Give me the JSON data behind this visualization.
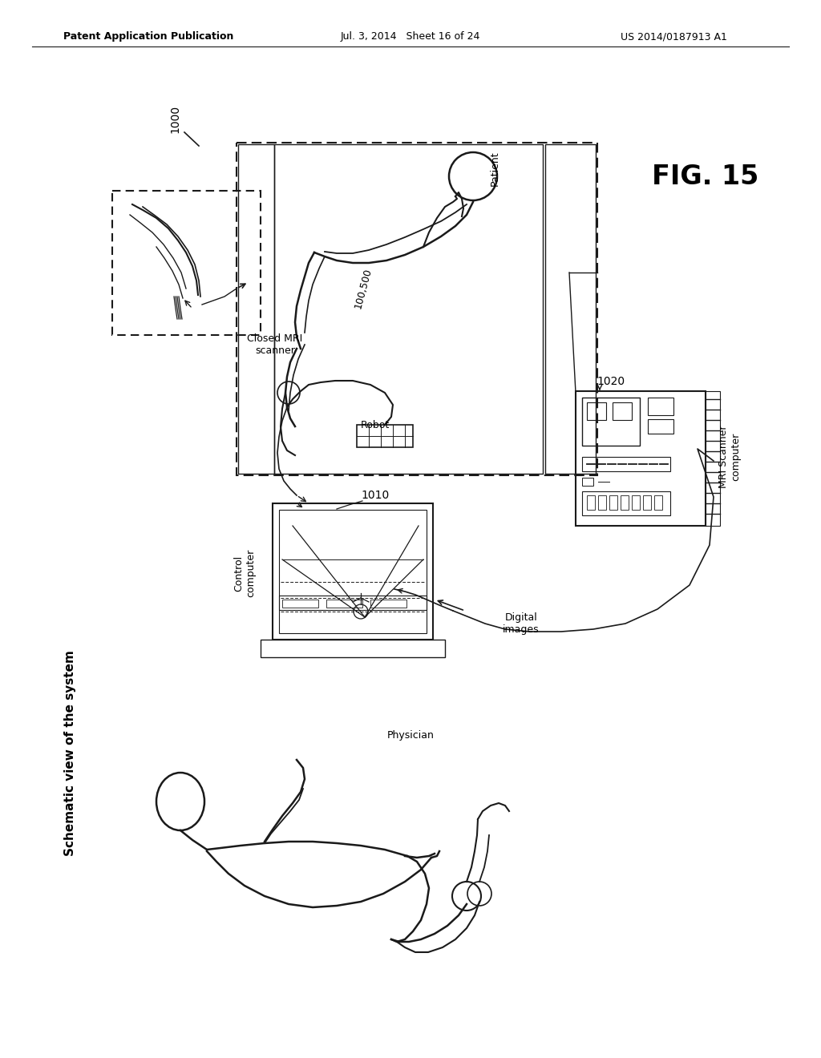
{
  "header_left": "Patent Application Publication",
  "header_center": "Jul. 3, 2014   Sheet 16 of 24",
  "header_right": "US 2014/0187913 A1",
  "fig_label": "FIG. 15",
  "subtitle": "Schematic view of the system",
  "label_1000": "1000",
  "label_1010": "1010",
  "label_1020": "1020",
  "label_patient": "Patient",
  "label_closed_mri": "Closed MRI\nscanner",
  "label_robot": "Robot",
  "label_100_500": "100,500",
  "label_mri_scanner_computer": "MRI Scanner\ncomputer",
  "label_control_computer": "Control\ncomputer",
  "label_physician": "Physician",
  "label_digital_images": "Digital\nimages",
  "bg_color": "#ffffff",
  "line_color": "#1a1a1a",
  "text_color": "#000000"
}
